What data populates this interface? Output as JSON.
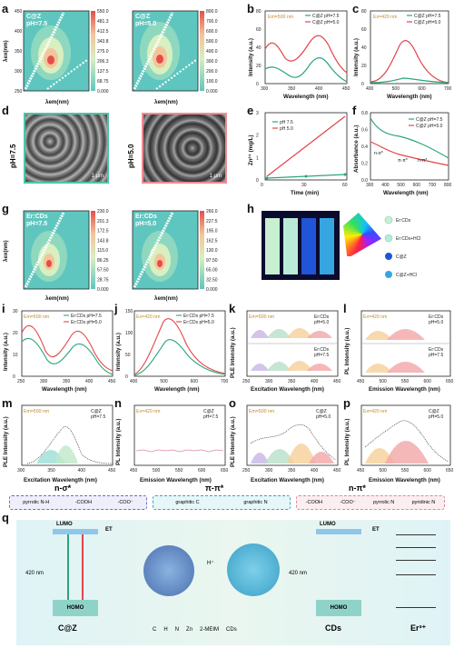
{
  "panels": {
    "a": {
      "label": "a",
      "left": {
        "title1": "C@Z",
        "title2": "pH=7.5",
        "scale": [
          "0.000",
          "68.75",
          "137.5",
          "206.3",
          "275.0",
          "343.8",
          "412.5",
          "481.3",
          "550.0"
        ]
      },
      "right": {
        "title1": "C@Z",
        "title2": "pH=5.0",
        "scale": [
          "0.000",
          "100.0",
          "200.0",
          "300.0",
          "400.0",
          "500.0",
          "600.0",
          "700.0",
          "800.0"
        ]
      },
      "xlabel": "λem(nm)",
      "ylabel": "λex(nm)",
      "xticks": [
        "300",
        "400",
        "500",
        "600",
        "700"
      ],
      "yticks": [
        "250",
        "300",
        "350",
        "400",
        "450"
      ]
    },
    "b": {
      "label": "b",
      "note": "Em=500 nm",
      "legend": [
        "C@Z pH=7.5",
        "C@Z pH=5.0"
      ],
      "xlabel": "Wavelength (nm)",
      "ylabel": "Intensity (a.u.)",
      "xticks": [
        "300",
        "350",
        "400",
        "450"
      ],
      "yticks": [
        "0",
        "20",
        "40",
        "60",
        "80"
      ]
    },
    "c": {
      "label": "c",
      "note": "Ex=420 nm",
      "legend": [
        "C@Z pH=7.5",
        "C@Z pH=5.0"
      ],
      "xlabel": "Wavelength (nm)",
      "ylabel": "Intensity (a.u.)",
      "xticks": [
        "400",
        "500",
        "600",
        "700"
      ],
      "yticks": [
        "0",
        "20",
        "40",
        "60",
        "80"
      ]
    },
    "d": {
      "label": "d",
      "left": {
        "side": "pH=7.5",
        "scale": "1 μm"
      },
      "right": {
        "side": "pH=5.0",
        "scale": "1 μm"
      }
    },
    "e": {
      "label": "e",
      "legend": [
        "pH 7.5",
        "pH 5.0"
      ],
      "xlabel": "Time (min)",
      "ylabel": "Zn²⁺ (mg/L)",
      "xticks": [
        "0",
        "30",
        "60"
      ],
      "yticks": [
        "0",
        "1",
        "2",
        "3"
      ]
    },
    "f": {
      "label": "f",
      "legend": [
        "C@Z pH=7.5",
        "C@Z pH=5.0"
      ],
      "xlabel": "Wavelength (nm)",
      "ylabel": "Absorbance (a.u.)",
      "xticks": [
        "300",
        "400",
        "500",
        "600",
        "700",
        "800"
      ],
      "yticks": [
        "0.0",
        "0.2",
        "0.4",
        "0.6",
        "0.8"
      ],
      "ann1": "n-σ*",
      "ann2": "π-π*",
      "ann3": "n-π*"
    },
    "g": {
      "label": "g",
      "left": {
        "title1": "Er:CDs",
        "title2": "pH=7.5",
        "scale": [
          "0.000",
          "28.75",
          "57.50",
          "86.25",
          "115.0",
          "143.8",
          "172.5",
          "201.3",
          "230.0"
        ]
      },
      "right": {
        "title1": "Er:CDs",
        "title2": "pH=5.0",
        "scale": [
          "0.000",
          "32.50",
          "65.00",
          "97.50",
          "130.0",
          "162.5",
          "195.0",
          "227.5",
          "260.0"
        ]
      },
      "xlabel": "λem(nm)",
      "ylabel": "λex(nm)",
      "xticks": [
        "300",
        "400",
        "500",
        "600",
        "700"
      ],
      "yticks": [
        "250",
        "300",
        "350",
        "400",
        "450"
      ]
    },
    "h": {
      "label": "h",
      "legend": [
        "Er:CDs",
        "Er:CDs+HCl",
        "C@Z",
        "C@Z+HCl"
      ]
    },
    "i": {
      "label": "i",
      "note": "Em=500 nm",
      "legend": [
        "Er:CDs pH=7.5",
        "Er:CDs pH=5.0"
      ],
      "xlabel": "Wavelength (nm)",
      "ylabel": "Intensity (a.u.)",
      "xticks": [
        "250",
        "300",
        "350",
        "400",
        "450"
      ],
      "yticks": [
        "0",
        "10",
        "20",
        "30"
      ]
    },
    "j": {
      "label": "j",
      "note": "Ex=420 nm",
      "legend": [
        "Er:CDs pH=7.5",
        "Er:CDs pH=5.0"
      ],
      "xlabel": "Wavelength (nm)",
      "ylabel": "Intensity (a.u.)",
      "xticks": [
        "400",
        "500",
        "600",
        "700"
      ],
      "yticks": [
        "0",
        "50",
        "100",
        "150"
      ]
    },
    "k": {
      "label": "k",
      "note": "Em=500 nm",
      "t1": "Er:CDs",
      "t2": "pH=5.0",
      "t3": "Er:CDs",
      "t4": "pH=7.5",
      "xlabel": "Excitation Wavelength (nm)",
      "ylabel": "PLE Intensity (a.u.)",
      "xticks": [
        "250",
        "300",
        "350",
        "400",
        "450"
      ]
    },
    "l": {
      "label": "l",
      "note": "Ex=420 nm",
      "t1": "Er:CDs",
      "t2": "pH=5.0",
      "t3": "Er:CDs",
      "t4": "pH=7.5",
      "xlabel": "Emission Wavelength (nm)",
      "ylabel": "PL Intensity (a.u.)",
      "xticks": [
        "450",
        "500",
        "550",
        "600",
        "650"
      ]
    },
    "m": {
      "label": "m",
      "note": "Em=500 nm",
      "t1": "C@Z",
      "t2": "pH=7.5",
      "xlabel": "Excitation Wavelength (nm)",
      "ylabel": "PLE Intensity (a.u.)",
      "xticks": [
        "300",
        "350",
        "400",
        "450"
      ]
    },
    "n": {
      "label": "n",
      "note": "Ex=420 nm",
      "t1": "C@Z",
      "t2": "pH=7.5",
      "xlabel": "Emission Wavelength (nm)",
      "ylabel": "PL Intensity (a.u.)",
      "xticks": [
        "450",
        "500",
        "550",
        "600",
        "650"
      ]
    },
    "o": {
      "label": "o",
      "note": "Em=500 nm",
      "t1": "C@Z",
      "t2": "pH=5.0",
      "xlabel": "Excitation Wavelength (nm)",
      "ylabel": "PLE Intensity (a.u.)",
      "xticks": [
        "250",
        "300",
        "350",
        "400",
        "450"
      ]
    },
    "p": {
      "label": "p",
      "note": "Ex=420 nm",
      "t1": "C@Z",
      "t2": "pH=5.0",
      "xlabel": "Emission Wavelength (nm)",
      "ylabel": "PL Intensity (a.u.)",
      "xticks": [
        "450",
        "500",
        "550",
        "600",
        "650"
      ]
    },
    "q": {
      "label": "q",
      "left_title": "C@Z",
      "mid_title": "CDs",
      "right_title": "Er³⁺",
      "ex": "420 nm",
      "lumo": "LUMO",
      "homo": "HOMO",
      "et": "ET",
      "h_plus": "H⁺",
      "legend": [
        "C",
        "H",
        "N",
        "Zn",
        "2-MEIM",
        "CDs"
      ]
    }
  },
  "bonds": {
    "groups": [
      {
        "title": "n-σ*",
        "items": [
          "pyrrolic N-H",
          "-COOH",
          "-COO⁻"
        ],
        "color": "#6b6fbf"
      },
      {
        "title": "π-π*",
        "items": [
          "graphitic C",
          "graphitic N"
        ],
        "color": "#3aa7b8"
      },
      {
        "title": "n-π*",
        "items": [
          "-COOH",
          "-COO⁻",
          "pyrrolic N",
          "pyridinic N"
        ],
        "color": "#d98c9a"
      }
    ]
  },
  "colors": {
    "teal": "#2bb3a0",
    "red": "#e2454a",
    "green": "#2aa67a",
    "pink": "#ef6f7c",
    "cyan_bg": "#5ec9c2"
  }
}
